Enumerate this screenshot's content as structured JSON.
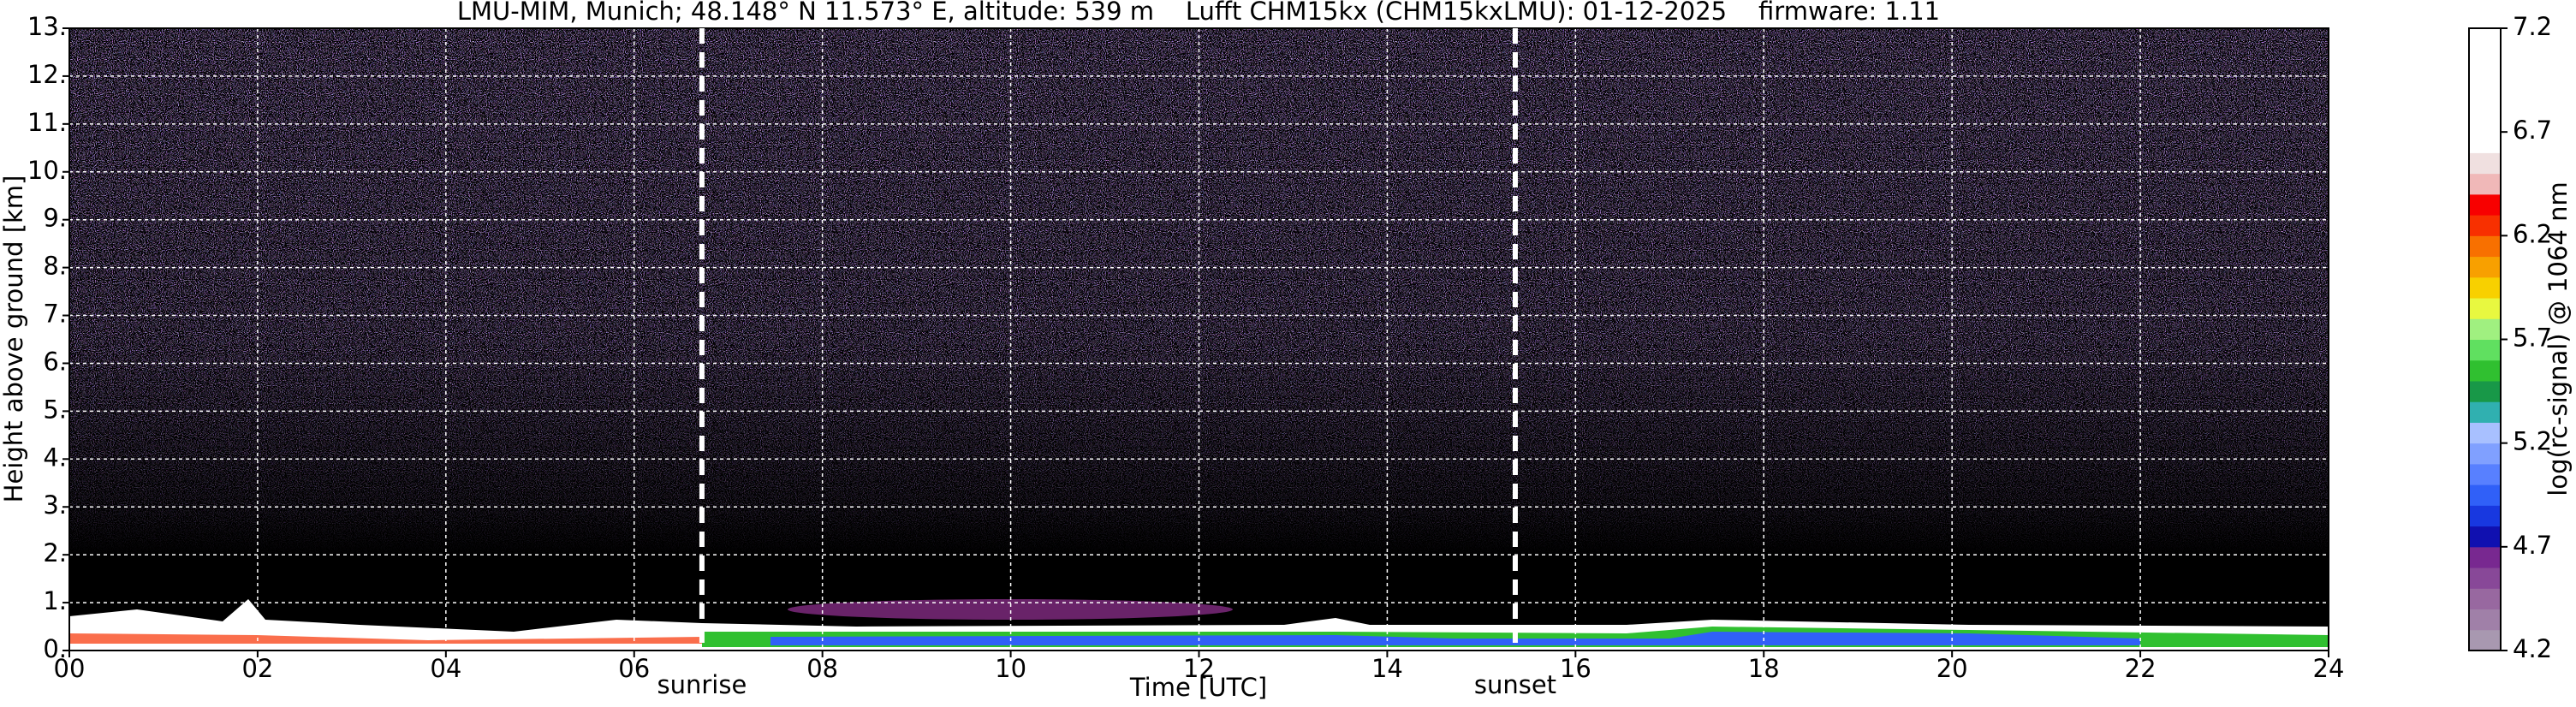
{
  "chart_data": {
    "type": "heatmap",
    "title": "LMU-MIM, Munich; 48.148° N 11.573° E, altitude: 539 m    Lufft CHM15kx (CHM15kxLMU): 01-12-2025    firmware: 1.11",
    "x_label": "Time [UTC]",
    "y_label": "Height above ground [km]",
    "xlim": [
      0,
      24
    ],
    "xticks": [
      {
        "value": 0,
        "label": "00"
      },
      {
        "value": 2,
        "label": "02"
      },
      {
        "value": 4,
        "label": "04"
      },
      {
        "value": 6,
        "label": "06"
      },
      {
        "value": 8,
        "label": "08"
      },
      10,
      12,
      14,
      16,
      18,
      20,
      22,
      24
    ],
    "ylim": [
      0,
      13
    ],
    "yticks": [
      {
        "value": 0,
        "label": "0."
      },
      {
        "value": 1,
        "label": "1."
      },
      {
        "value": 2,
        "label": "2."
      },
      {
        "value": 3,
        "label": "3."
      },
      {
        "value": 4,
        "label": "4."
      },
      {
        "value": 5,
        "label": "5."
      },
      {
        "value": 6,
        "label": "6."
      },
      {
        "value": 7,
        "label": "7."
      },
      {
        "value": 8,
        "label": "8."
      },
      {
        "value": 9,
        "label": "9."
      },
      {
        "value": 10,
        "label": "10."
      },
      {
        "value": 11,
        "label": "11."
      },
      {
        "value": 12,
        "label": "12."
      },
      {
        "value": 13,
        "label": "13."
      }
    ],
    "grid": true,
    "annotations": [
      {
        "label": "sunrise",
        "x": 6.72
      },
      {
        "label": "sunset",
        "x": 15.36
      }
    ],
    "colorbar": {
      "label": "log(rc-signal) @ 1064 nm",
      "clim": [
        4.2,
        7.2
      ],
      "ticks": [
        4.2,
        4.7,
        5.2,
        5.7,
        6.2,
        6.7,
        7.2
      ],
      "colors": [
        "#a898b0",
        "#a080a8",
        "#9868a0",
        "#884898",
        "#782890",
        "#1010b0",
        "#1838e0",
        "#3060f8",
        "#5880ff",
        "#80a0ff",
        "#a8c0ff",
        "#30b0b0",
        "#189848",
        "#30c030",
        "#60e060",
        "#a0f080",
        "#e8f840",
        "#f8d000",
        "#f8a000",
        "#f87000",
        "#f83000",
        "#f80000",
        "#f0b8b8",
        "#f0e0e0",
        "#ffffff",
        "#ffffff",
        "#ffffff",
        "#ffffff",
        "#ffffff",
        "#ffffff"
      ]
    }
  }
}
